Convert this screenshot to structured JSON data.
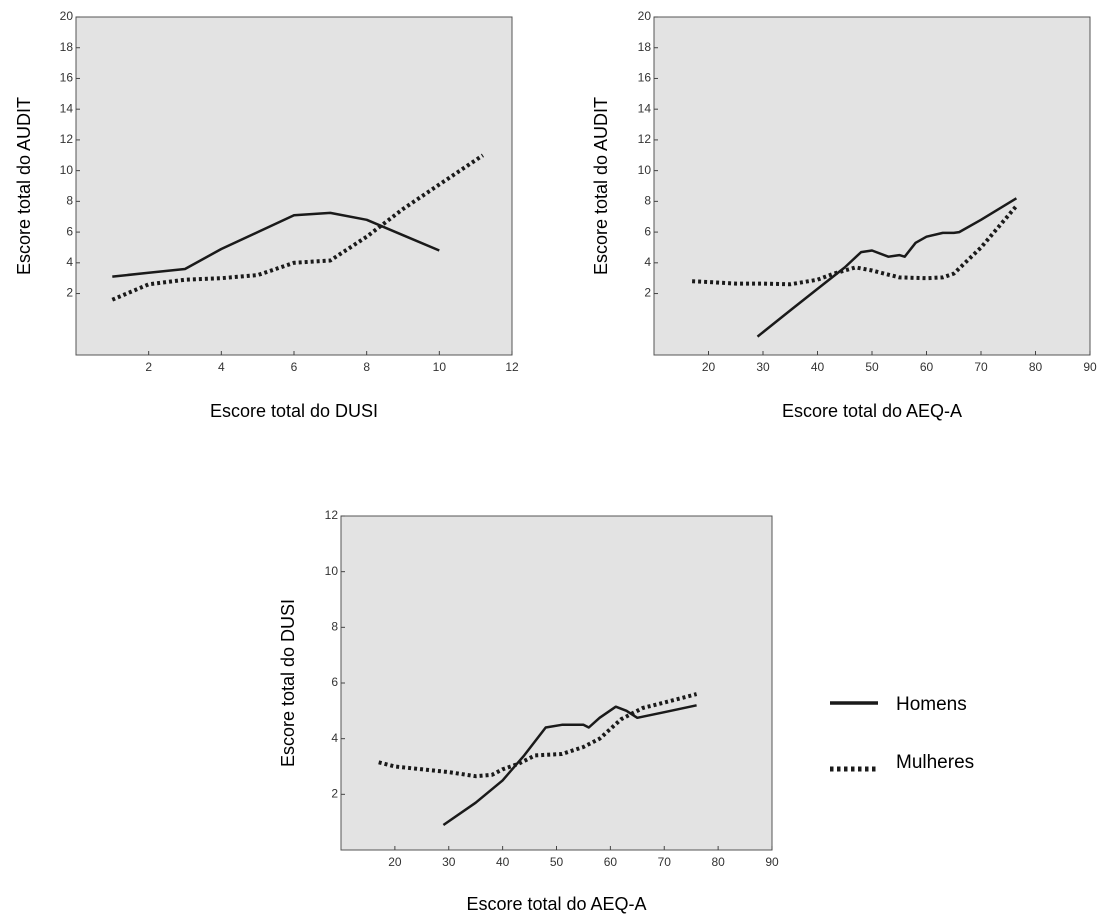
{
  "colors": {
    "plot_background": "#e3e3e3",
    "series_line": "#1a1a1a"
  },
  "legend": {
    "placement": "right-of-bottom-chart",
    "items": [
      {
        "label": "Homens",
        "style": "solid"
      },
      {
        "label": "Mulheres",
        "style": "dotted"
      }
    ]
  },
  "chart_data": [
    {
      "type": "line",
      "xlabel": "Escore total do DUSI",
      "ylabel": "Escore total do AUDIT",
      "xlim": [
        0,
        12
      ],
      "ylim": [
        -2,
        20
      ],
      "x_ticks": [
        2,
        4,
        6,
        8,
        10,
        12
      ],
      "y_ticks": [
        2,
        4,
        6,
        8,
        10,
        12,
        14,
        16,
        18,
        20
      ],
      "grid": false,
      "series": [
        {
          "name": "Homens",
          "style": "solid",
          "points": [
            [
              1,
              3.1
            ],
            [
              2,
              3.35
            ],
            [
              3,
              3.6
            ],
            [
              4,
              4.9
            ],
            [
              5,
              6.0
            ],
            [
              6,
              7.1
            ],
            [
              7,
              7.25
            ],
            [
              8,
              6.8
            ],
            [
              9,
              5.8
            ],
            [
              10,
              4.8
            ]
          ]
        },
        {
          "name": "Mulheres",
          "style": "dotted",
          "points": [
            [
              1,
              1.6
            ],
            [
              2,
              2.6
            ],
            [
              3,
              2.9
            ],
            [
              4,
              3.0
            ],
            [
              5,
              3.2
            ],
            [
              6,
              4.0
            ],
            [
              7,
              4.15
            ],
            [
              8,
              5.7
            ],
            [
              9,
              7.5
            ],
            [
              10,
              9.1
            ],
            [
              11.2,
              11.0
            ]
          ]
        }
      ]
    },
    {
      "type": "line",
      "xlabel": "Escore total do AEQ-A",
      "ylabel": "Escore total do AUDIT",
      "xlim": [
        10,
        90
      ],
      "ylim": [
        -2,
        20
      ],
      "x_ticks": [
        20,
        30,
        40,
        50,
        60,
        70,
        80,
        90
      ],
      "y_ticks": [
        2,
        4,
        6,
        8,
        10,
        12,
        14,
        16,
        18,
        20
      ],
      "grid": false,
      "series": [
        {
          "name": "Homens",
          "style": "solid",
          "points": [
            [
              29,
              -0.8
            ],
            [
              35,
              0.9
            ],
            [
              40,
              2.3
            ],
            [
              45,
              3.7
            ],
            [
              48,
              4.7
            ],
            [
              50,
              4.8
            ],
            [
              53,
              4.4
            ],
            [
              55,
              4.5
            ],
            [
              56,
              4.4
            ],
            [
              58,
              5.3
            ],
            [
              60,
              5.7
            ],
            [
              63,
              5.95
            ],
            [
              65,
              5.95
            ],
            [
              66,
              6.0
            ],
            [
              70,
              6.8
            ],
            [
              76.5,
              8.2
            ]
          ]
        },
        {
          "name": "Mulheres",
          "style": "dotted",
          "points": [
            [
              17,
              2.8
            ],
            [
              20,
              2.75
            ],
            [
              25,
              2.65
            ],
            [
              30,
              2.65
            ],
            [
              35,
              2.6
            ],
            [
              40,
              2.9
            ],
            [
              43,
              3.3
            ],
            [
              47,
              3.7
            ],
            [
              50,
              3.5
            ],
            [
              55,
              3.05
            ],
            [
              60,
              3.0
            ],
            [
              63,
              3.05
            ],
            [
              65,
              3.3
            ],
            [
              70,
              5.0
            ],
            [
              76.5,
              7.7
            ]
          ]
        }
      ]
    },
    {
      "type": "line",
      "xlabel": "Escore total do AEQ-A",
      "ylabel": "Escore total do DUSI",
      "xlim": [
        10,
        90
      ],
      "ylim": [
        0,
        12
      ],
      "x_ticks": [
        20,
        30,
        40,
        50,
        60,
        70,
        80,
        90
      ],
      "y_ticks": [
        2,
        4,
        6,
        8,
        10,
        12
      ],
      "grid": false,
      "series": [
        {
          "name": "Homens",
          "style": "solid",
          "points": [
            [
              29,
              0.9
            ],
            [
              35,
              1.7
            ],
            [
              40,
              2.5
            ],
            [
              44,
              3.4
            ],
            [
              48,
              4.4
            ],
            [
              51,
              4.5
            ],
            [
              55,
              4.5
            ],
            [
              56,
              4.4
            ],
            [
              58,
              4.75
            ],
            [
              61,
              5.15
            ],
            [
              63,
              5.0
            ],
            [
              65,
              4.75
            ],
            [
              70,
              4.95
            ],
            [
              76,
              5.2
            ]
          ]
        },
        {
          "name": "Mulheres",
          "style": "dotted",
          "points": [
            [
              17,
              3.15
            ],
            [
              20,
              3.0
            ],
            [
              25,
              2.9
            ],
            [
              30,
              2.8
            ],
            [
              35,
              2.65
            ],
            [
              38,
              2.7
            ],
            [
              40,
              2.9
            ],
            [
              43,
              3.1
            ],
            [
              46,
              3.4
            ],
            [
              51,
              3.45
            ],
            [
              55,
              3.7
            ],
            [
              58,
              4.0
            ],
            [
              62,
              4.7
            ],
            [
              66,
              5.1
            ],
            [
              70,
              5.3
            ],
            [
              76,
              5.6
            ]
          ]
        }
      ]
    }
  ]
}
